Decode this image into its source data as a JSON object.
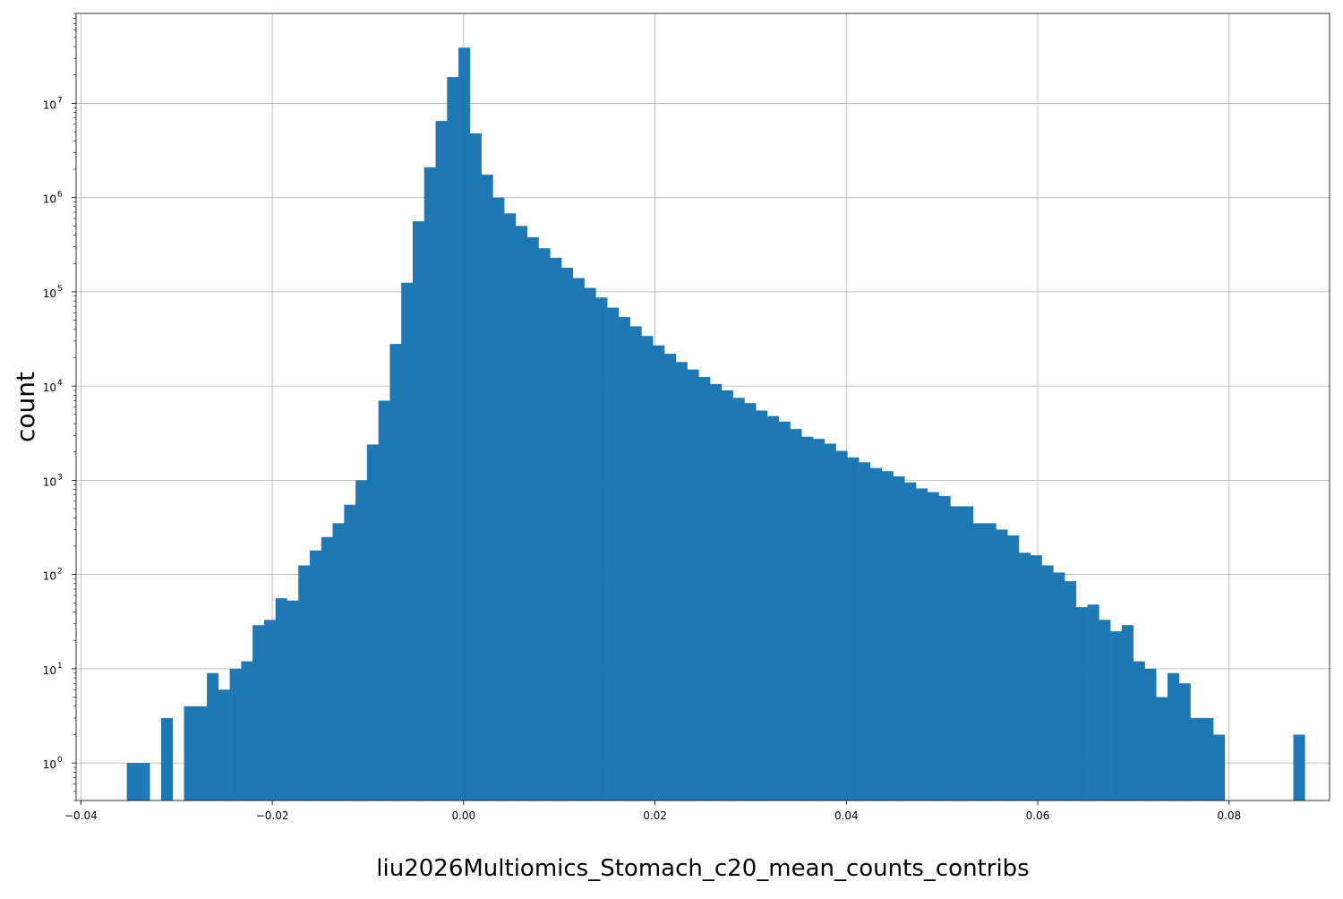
{
  "chart_data": {
    "type": "bar",
    "title": "",
    "xlabel": "liu2026Multiomics_Stomach_c20_mean_counts_contribs",
    "ylabel": "count",
    "xlim": [
      -0.0405,
      0.0905
    ],
    "ylim": [
      0.4,
      90000000
    ],
    "yscale": "log",
    "grid": true,
    "legend": "none",
    "bar_color": "#1f77b4",
    "x_ticks": [
      {
        "value": -0.04,
        "label": "−0.04"
      },
      {
        "value": -0.02,
        "label": "−0.02"
      },
      {
        "value": 0.0,
        "label": "0.00"
      },
      {
        "value": 0.02,
        "label": "0.02"
      },
      {
        "value": 0.04,
        "label": "0.04"
      },
      {
        "value": 0.06,
        "label": "0.06"
      },
      {
        "value": 0.08,
        "label": "0.08"
      }
    ],
    "y_ticks": [
      {
        "value": 1,
        "base": "10",
        "exp": "0"
      },
      {
        "value": 10,
        "base": "10",
        "exp": "1"
      },
      {
        "value": 100,
        "base": "10",
        "exp": "2"
      },
      {
        "value": 1000,
        "base": "10",
        "exp": "3"
      },
      {
        "value": 10000,
        "base": "10",
        "exp": "4"
      },
      {
        "value": 100000,
        "base": "10",
        "exp": "5"
      },
      {
        "value": 1000000,
        "base": "10",
        "exp": "6"
      },
      {
        "value": 10000000,
        "base": "10",
        "exp": "7"
      }
    ],
    "bin_start": -0.0352,
    "bin_width": 0.0011952,
    "counts": [
      1,
      1,
      0,
      3,
      0,
      4,
      4,
      9,
      6,
      10,
      12,
      29,
      33,
      56,
      53,
      125,
      180,
      250,
      350,
      550,
      1000,
      2400,
      7000,
      28000,
      125000,
      560000,
      2100000,
      6500000,
      19000000,
      39000000,
      4800000,
      1750000,
      1000000,
      680000,
      500000,
      380000,
      290000,
      230000,
      180000,
      140000,
      110000,
      87000,
      68000,
      54000,
      43000,
      34000,
      27000,
      22000,
      18000,
      15000,
      12500,
      10500,
      9000,
      7500,
      6600,
      5500,
      4800,
      4200,
      3500,
      2900,
      2750,
      2450,
      2050,
      1750,
      1550,
      1350,
      1250,
      1100,
      950,
      820,
      750,
      680,
      530,
      530,
      350,
      350,
      300,
      260,
      170,
      160,
      125,
      105,
      85,
      45,
      48,
      33,
      25,
      29,
      12,
      10,
      5,
      9,
      7,
      3,
      3,
      2,
      0,
      0,
      0,
      0,
      0,
      0,
      2
    ]
  }
}
